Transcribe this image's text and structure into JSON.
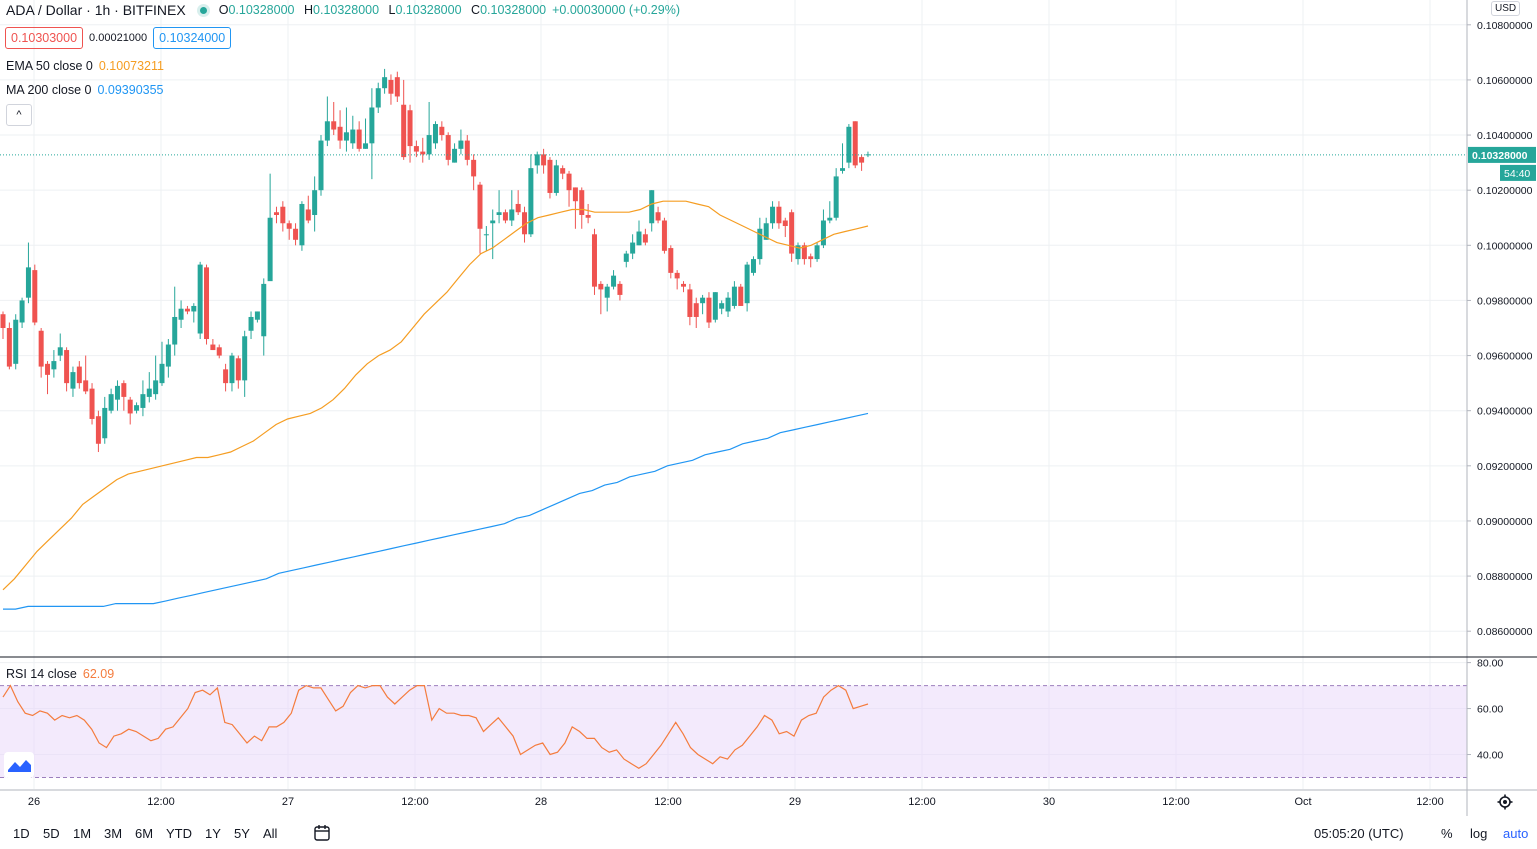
{
  "header": {
    "symbol": "ADA / Dollar · 1h · BITFINEX",
    "o_label": "O",
    "o": "0.10328000",
    "h_label": "H",
    "h": "0.10328000",
    "l_label": "L",
    "l": "0.10328000",
    "c_label": "C",
    "c": "0.10328000",
    "change": "+0.00030000 (+0.29%)"
  },
  "quote": {
    "bid": "0.10303000",
    "spread": "0.00021000",
    "ask": "0.10324000"
  },
  "indicators": {
    "ema_label": "EMA 50 close 0",
    "ema_value": "0.10073211",
    "ma_label": "MA 200 close 0",
    "ma_value": "0.09390355",
    "collapse_glyph": "^"
  },
  "rsi": {
    "label": "RSI 14 close",
    "value": "62.09"
  },
  "currency": "USD",
  "last_price_label": "0.10328000",
  "countdown": "54:40",
  "bottom": {
    "ranges": [
      "1D",
      "5D",
      "1M",
      "3M",
      "6M",
      "YTD",
      "1Y",
      "5Y",
      "All"
    ],
    "time": "05:05:20 (UTC)",
    "percent": "%",
    "log": "log",
    "auto": "auto"
  },
  "colors": {
    "up": "#26a69a",
    "down": "#ef5350",
    "ema": "#f59d22",
    "ma": "#2196f3",
    "rsi": "#f47c3e",
    "rsi_band": "#e9d8fa"
  },
  "chart_data": [
    {
      "type": "candlestick",
      "title": "ADA / Dollar · 1h · BITFINEX",
      "ylim": [
        0.0851,
        0.1089
      ],
      "y_ticks": [
        "0.10800000",
        "0.10600000",
        "0.10400000",
        "0.10200000",
        "0.10000000",
        "0.09800000",
        "0.09600000",
        "0.09400000",
        "0.09200000",
        "0.09000000",
        "0.08800000",
        "0.08600000"
      ],
      "x_tick_labels": [
        "26",
        "12:00",
        "27",
        "12:00",
        "28",
        "12:00",
        "29",
        "12:00",
        "30",
        "12:00",
        "Oct",
        "12:00"
      ],
      "candles": [
        [
          0.0975,
          0.097,
          0.0976,
          0.0966
        ],
        [
          0.097,
          0.0956,
          0.0972,
          0.0955
        ],
        [
          0.0957,
          0.0973,
          0.0975,
          0.0955
        ],
        [
          0.0972,
          0.098,
          0.0981,
          0.097
        ],
        [
          0.0981,
          0.0992,
          0.1001,
          0.0979
        ],
        [
          0.0991,
          0.0972,
          0.0993,
          0.0971
        ],
        [
          0.0969,
          0.0956,
          0.097,
          0.0952
        ],
        [
          0.0957,
          0.0953,
          0.0958,
          0.0946
        ],
        [
          0.0955,
          0.0958,
          0.0962,
          0.0952
        ],
        [
          0.096,
          0.0963,
          0.0968,
          0.0958
        ],
        [
          0.0962,
          0.095,
          0.0963,
          0.0947
        ],
        [
          0.0948,
          0.0954,
          0.0956,
          0.0945
        ],
        [
          0.0956,
          0.095,
          0.0958,
          0.0948
        ],
        [
          0.0951,
          0.0947,
          0.096,
          0.0946
        ],
        [
          0.0948,
          0.0937,
          0.095,
          0.0935
        ],
        [
          0.0938,
          0.0928,
          0.094,
          0.0925
        ],
        [
          0.093,
          0.0941,
          0.0945,
          0.0928
        ],
        [
          0.094,
          0.0946,
          0.0948,
          0.0939
        ],
        [
          0.0944,
          0.0949,
          0.0951,
          0.094
        ],
        [
          0.095,
          0.0945,
          0.0951,
          0.094
        ],
        [
          0.0944,
          0.0939,
          0.0945,
          0.0935
        ],
        [
          0.094,
          0.0942,
          0.0943,
          0.0939
        ],
        [
          0.0941,
          0.0946,
          0.0951,
          0.0938
        ],
        [
          0.0945,
          0.0948,
          0.0954,
          0.0943
        ],
        [
          0.0946,
          0.0951,
          0.096,
          0.0944
        ],
        [
          0.095,
          0.0957,
          0.0965,
          0.0949
        ],
        [
          0.0956,
          0.0964,
          0.0966,
          0.0952
        ],
        [
          0.0964,
          0.0974,
          0.0985,
          0.096
        ],
        [
          0.0973,
          0.0977,
          0.098,
          0.097
        ],
        [
          0.0977,
          0.0976,
          0.0978,
          0.0975
        ],
        [
          0.0976,
          0.0978,
          0.0979,
          0.0972
        ],
        [
          0.0968,
          0.0993,
          0.0994,
          0.0966
        ],
        [
          0.0992,
          0.0966,
          0.0993,
          0.0964
        ],
        [
          0.0964,
          0.0962,
          0.0966,
          0.0962
        ],
        [
          0.0963,
          0.096,
          0.0964,
          0.0959
        ],
        [
          0.0955,
          0.095,
          0.0957,
          0.0947
        ],
        [
          0.095,
          0.096,
          0.0961,
          0.0947
        ],
        [
          0.0959,
          0.0951,
          0.096,
          0.0948
        ],
        [
          0.0951,
          0.0967,
          0.0969,
          0.0945
        ],
        [
          0.0969,
          0.0974,
          0.0976,
          0.0966
        ],
        [
          0.0973,
          0.0976,
          0.0976,
          0.0972
        ],
        [
          0.0967,
          0.0986,
          0.0988,
          0.096
        ],
        [
          0.0987,
          0.101,
          0.1026,
          0.1001
        ],
        [
          0.1012,
          0.1011,
          0.1014,
          0.1008
        ],
        [
          0.1014,
          0.1008,
          0.1016,
          0.1005
        ],
        [
          0.1008,
          0.1006,
          0.1009,
          0.1002
        ],
        [
          0.1006,
          0.1002,
          0.1008,
          0.1
        ],
        [
          0.1,
          0.1015,
          0.1016,
          0.0998
        ],
        [
          0.1013,
          0.1009,
          0.1018,
          0.1008
        ],
        [
          0.1011,
          0.102,
          0.1025,
          0.1005
        ],
        [
          0.102,
          0.1038,
          0.104,
          0.1018
        ],
        [
          0.1038,
          0.1045,
          0.1054,
          0.1036
        ],
        [
          0.1045,
          0.1042,
          0.1052,
          0.104
        ],
        [
          0.1043,
          0.1038,
          0.1049,
          0.1035
        ],
        [
          0.1038,
          0.1041,
          0.105,
          0.1034
        ],
        [
          0.1037,
          0.1042,
          0.1047,
          0.1035
        ],
        [
          0.1042,
          0.1035,
          0.1045,
          0.1034
        ],
        [
          0.1035,
          0.1037,
          0.1046,
          0.1035
        ],
        [
          0.1037,
          0.105,
          0.1057,
          0.1024
        ],
        [
          0.105,
          0.1057,
          0.1059,
          0.1048
        ],
        [
          0.1057,
          0.1061,
          0.1064,
          0.1055
        ],
        [
          0.106,
          0.1055,
          0.1062,
          0.1051
        ],
        [
          0.1061,
          0.1054,
          0.1063,
          0.1052
        ],
        [
          0.1051,
          0.1032,
          0.106,
          0.1031
        ],
        [
          0.1049,
          0.1036,
          0.1051,
          0.103
        ],
        [
          0.1036,
          0.1034,
          0.1038,
          0.1032
        ],
        [
          0.1034,
          0.1033,
          0.1039,
          0.103
        ],
        [
          0.1033,
          0.104,
          0.1052,
          0.1031
        ],
        [
          0.1037,
          0.1044,
          0.1045,
          0.1035
        ],
        [
          0.1043,
          0.104,
          0.1045,
          0.1038
        ],
        [
          0.104,
          0.1031,
          0.1041,
          0.1029
        ],
        [
          0.103,
          0.1035,
          0.1037,
          0.103
        ],
        [
          0.1035,
          0.1038,
          0.1042,
          0.1033
        ],
        [
          0.1038,
          0.1031,
          0.104,
          0.1029
        ],
        [
          0.1031,
          0.1025,
          0.1033,
          0.102
        ],
        [
          0.1022,
          0.1006,
          0.1023,
          0.0997
        ],
        [
          0.1004,
          0.1004,
          0.1007,
          0.0998
        ],
        [
          0.1008,
          0.1009,
          0.1013,
          0.0995
        ],
        [
          0.1011,
          0.1012,
          0.102,
          0.1008
        ],
        [
          0.1012,
          0.1009,
          0.1013,
          0.1008
        ],
        [
          0.1009,
          0.1013,
          0.102,
          0.1007
        ],
        [
          0.1015,
          0.1012,
          0.102,
          0.1011
        ],
        [
          0.1012,
          0.1004,
          0.1014,
          0.1001
        ],
        [
          0.1004,
          0.1028,
          0.1033,
          0.1003
        ],
        [
          0.1029,
          0.1033,
          0.1034,
          0.1026
        ],
        [
          0.1033,
          0.1029,
          0.1035,
          0.1026
        ],
        [
          0.1031,
          0.1019,
          0.1032,
          0.1017
        ],
        [
          0.1019,
          0.1029,
          0.1031,
          0.1018
        ],
        [
          0.1028,
          0.1026,
          0.1029,
          0.1024
        ],
        [
          0.1026,
          0.102,
          0.1027,
          0.1014
        ],
        [
          0.1021,
          0.1016,
          0.1021,
          0.1006
        ],
        [
          0.102,
          0.1011,
          0.1021,
          0.1006
        ],
        [
          0.1011,
          0.101,
          0.1015,
          0.1008
        ],
        [
          0.1004,
          0.0985,
          0.1006,
          0.0982
        ],
        [
          0.0986,
          0.0984,
          0.0987,
          0.0975
        ],
        [
          0.0981,
          0.0985,
          0.0986,
          0.0976
        ],
        [
          0.0985,
          0.0989,
          0.0991,
          0.0984
        ],
        [
          0.0986,
          0.0982,
          0.0987,
          0.098
        ],
        [
          0.0994,
          0.0997,
          0.0998,
          0.0992
        ],
        [
          0.0997,
          0.1001,
          0.1004,
          0.0995
        ],
        [
          0.1,
          0.1005,
          0.1009,
          0.1
        ],
        [
          0.1004,
          0.1001,
          0.1006,
          0.1
        ],
        [
          0.1008,
          0.102,
          0.102,
          0.1005
        ],
        [
          0.1012,
          0.1009,
          0.1014,
          0.1008
        ],
        [
          0.1009,
          0.0998,
          0.101,
          0.0997
        ],
        [
          0.0999,
          0.099,
          0.1,
          0.0988
        ],
        [
          0.099,
          0.0988,
          0.0991,
          0.0984
        ],
        [
          0.0986,
          0.0985,
          0.0987,
          0.0983
        ],
        [
          0.0984,
          0.0974,
          0.0986,
          0.0971
        ],
        [
          0.0979,
          0.0974,
          0.0981,
          0.097
        ],
        [
          0.0979,
          0.0981,
          0.0982,
          0.0975
        ],
        [
          0.0981,
          0.0972,
          0.0983,
          0.097
        ],
        [
          0.0973,
          0.0983,
          0.0983,
          0.0972
        ],
        [
          0.0977,
          0.0979,
          0.098,
          0.0975
        ],
        [
          0.0976,
          0.0981,
          0.0983,
          0.0974
        ],
        [
          0.0978,
          0.0985,
          0.0987,
          0.0977
        ],
        [
          0.0985,
          0.0978,
          0.0986,
          0.0978
        ],
        [
          0.0979,
          0.0993,
          0.0994,
          0.0976
        ],
        [
          0.099,
          0.0995,
          0.0996,
          0.0989
        ],
        [
          0.0995,
          0.1006,
          0.101,
          0.0993
        ],
        [
          0.1002,
          0.1008,
          0.101,
          0.1002
        ],
        [
          0.1008,
          0.1014,
          0.1016,
          0.1006
        ],
        [
          0.1014,
          0.1008,
          0.1016,
          0.1006
        ],
        [
          0.1009,
          0.1007,
          0.101,
          0.1003
        ],
        [
          0.1012,
          0.0997,
          0.1013,
          0.0994
        ],
        [
          0.0995,
          0.1,
          0.1001,
          0.0993
        ],
        [
          0.1,
          0.0995,
          0.1001,
          0.0993
        ],
        [
          0.0996,
          0.0995,
          0.0997,
          0.0992
        ],
        [
          0.0995,
          0.1,
          0.1001,
          0.0994
        ],
        [
          0.1,
          0.1009,
          0.1013,
          0.0999
        ],
        [
          0.1009,
          0.101,
          0.1016,
          0.1008
        ],
        [
          0.101,
          0.1025,
          0.1028,
          0.1009
        ],
        [
          0.1027,
          0.1028,
          0.1037,
          0.1026
        ],
        [
          0.103,
          0.1043,
          0.1044,
          0.1028
        ],
        [
          0.1045,
          0.1029,
          0.1045,
          0.1028
        ],
        [
          0.1032,
          0.103,
          0.1033,
          0.1027
        ],
        [
          0.1033,
          0.1033,
          0.1034,
          0.1032
        ]
      ]
    },
    {
      "type": "line",
      "series": [
        {
          "name": "EMA 50 close 0",
          "values": [
            0.0875,
            0.0879,
            0.0884,
            0.0889,
            0.0893,
            0.0897,
            0.0901,
            0.0906,
            0.0909,
            0.0912,
            0.0915,
            0.0917,
            0.0918,
            0.0919,
            0.092,
            0.0921,
            0.0922,
            0.0923,
            0.0923,
            0.0924,
            0.0925,
            0.0927,
            0.0929,
            0.0932,
            0.0935,
            0.0937,
            0.0938,
            0.0939,
            0.0941,
            0.0944,
            0.0948,
            0.0953,
            0.0957,
            0.096,
            0.0962,
            0.0965,
            0.097,
            0.0975,
            0.0979,
            0.0983,
            0.0988,
            0.0993,
            0.0997,
            0.0999,
            0.1002,
            0.1005,
            0.1008,
            0.101,
            0.1011,
            0.1012,
            0.1013,
            0.1013,
            0.1012,
            0.1012,
            0.1012,
            0.1012,
            0.1013,
            0.1015,
            0.1016,
            0.1016,
            0.1016,
            0.1015,
            0.1014,
            0.1011,
            0.1009,
            0.1007,
            0.1005,
            0.1003,
            0.1001,
            0.1,
            0.0999,
            0.1,
            0.1002,
            0.1004,
            0.1005,
            0.1006,
            0.1007
          ]
        },
        {
          "name": "MA 200 close 0",
          "values": [
            0.0868,
            0.0868,
            0.0869,
            0.0869,
            0.0869,
            0.0869,
            0.0869,
            0.0869,
            0.0869,
            0.087,
            0.087,
            0.087,
            0.087,
            0.0871,
            0.0872,
            0.0873,
            0.0874,
            0.0875,
            0.0876,
            0.0877,
            0.0878,
            0.0879,
            0.0881,
            0.0882,
            0.0883,
            0.0884,
            0.0885,
            0.0886,
            0.0887,
            0.0888,
            0.0889,
            0.089,
            0.0891,
            0.0892,
            0.0893,
            0.0894,
            0.0895,
            0.0896,
            0.0897,
            0.0898,
            0.0899,
            0.0901,
            0.0902,
            0.0904,
            0.0906,
            0.0908,
            0.091,
            0.0911,
            0.0913,
            0.0914,
            0.0916,
            0.0917,
            0.0918,
            0.092,
            0.0921,
            0.0922,
            0.0924,
            0.0925,
            0.0926,
            0.0928,
            0.0929,
            0.093,
            0.0932,
            0.0933,
            0.0934,
            0.0935,
            0.0936,
            0.0937,
            0.0938,
            0.0939
          ]
        }
      ]
    },
    {
      "type": "line",
      "title": "RSI 14 close",
      "ylim": [
        25,
        82
      ],
      "y_ticks": [
        "80.00",
        "60.00",
        "40.00"
      ],
      "series": [
        {
          "name": "RSI 14 close",
          "values": [
            65,
            70,
            63,
            58,
            57,
            59,
            58,
            55,
            57,
            56,
            57,
            55,
            51,
            45,
            43,
            48,
            49,
            51,
            50,
            48,
            46,
            47,
            51,
            52,
            56,
            60,
            67,
            68,
            66,
            69,
            54,
            53,
            49,
            45,
            48,
            46,
            52,
            52,
            54,
            58,
            68,
            70,
            69,
            69,
            64,
            59,
            61,
            67,
            70,
            69,
            70,
            70,
            65,
            62,
            65,
            68,
            70,
            70,
            55,
            60,
            58,
            58,
            57,
            57,
            56,
            50,
            53,
            56,
            52,
            48,
            40,
            42,
            44,
            45,
            40,
            41,
            45,
            52,
            50,
            47,
            47,
            43,
            41,
            42,
            38,
            36,
            34,
            36,
            40,
            44,
            49,
            54,
            49,
            43,
            40,
            38,
            36,
            39,
            38,
            42,
            44,
            48,
            52,
            57,
            55,
            49,
            50,
            48,
            55,
            57,
            58,
            65,
            68,
            70,
            68,
            60,
            61,
            62
          ]
        }
      ]
    }
  ]
}
